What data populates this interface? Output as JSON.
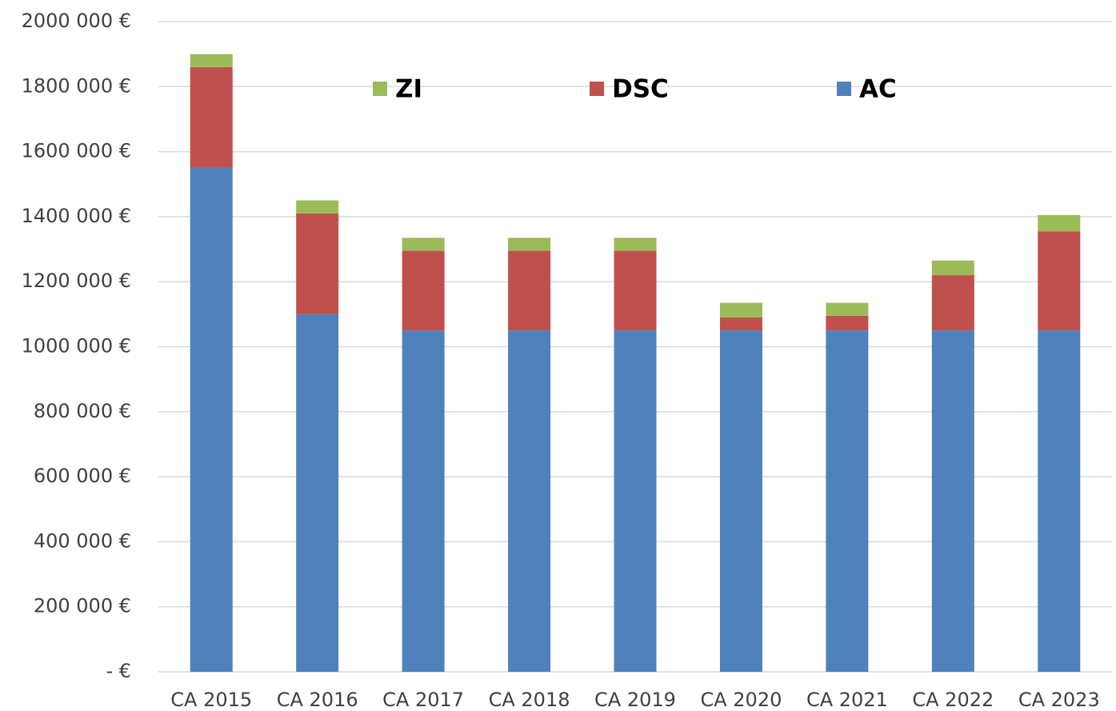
{
  "chart_data": {
    "type": "bar",
    "stacked": true,
    "categories": [
      "CA 2015",
      "CA 2016",
      "CA 2017",
      "CA 2018",
      "CA 2019",
      "CA 2020",
      "CA 2021",
      "CA 2022",
      "CA 2023"
    ],
    "series": [
      {
        "name": "AC",
        "color": "#4f81bd",
        "values": [
          1550000,
          1100000,
          1050000,
          1050000,
          1050000,
          1050000,
          1050000,
          1050000,
          1050000
        ]
      },
      {
        "name": "DSC",
        "color": "#c0504d",
        "values": [
          310000,
          310000,
          245000,
          245000,
          245000,
          40000,
          45000,
          170000,
          305000
        ]
      },
      {
        "name": "ZI",
        "color": "#9bbb59",
        "values": [
          40000,
          40000,
          40000,
          40000,
          40000,
          45000,
          40000,
          45000,
          50000
        ]
      }
    ],
    "ylim": [
      0,
      2000000
    ],
    "yticks": [
      {
        "value": 0,
        "label": "- €"
      },
      {
        "value": 200000,
        "label": "200 000 €"
      },
      {
        "value": 400000,
        "label": "400 000 €"
      },
      {
        "value": 600000,
        "label": "600 000 €"
      },
      {
        "value": 800000,
        "label": "800 000 €"
      },
      {
        "value": 1000000,
        "label": "1000 000 €"
      },
      {
        "value": 1200000,
        "label": "1200 000 €"
      },
      {
        "value": 1400000,
        "label": "1400 000 €"
      },
      {
        "value": 1600000,
        "label": "1600 000 €"
      },
      {
        "value": 1800000,
        "label": "1800 000 €"
      },
      {
        "value": 2000000,
        "label": "2000 000 €"
      }
    ],
    "grid": true,
    "legend_position": "top"
  }
}
